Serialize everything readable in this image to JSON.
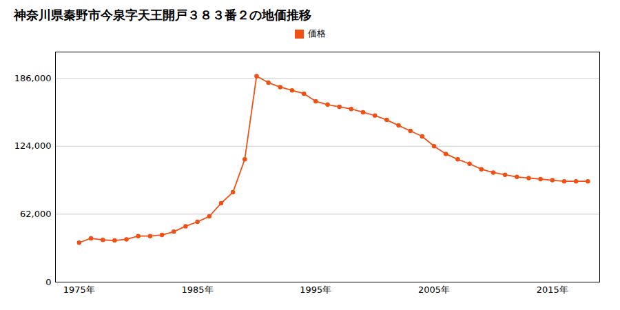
{
  "chart_data": {
    "type": "line",
    "title": "神奈川県秦野市今泉字天王開戸３８３番２の地価推移",
    "x": [
      1975,
      1976,
      1977,
      1978,
      1979,
      1980,
      1981,
      1982,
      1983,
      1984,
      1985,
      1986,
      1987,
      1988,
      1989,
      1990,
      1991,
      1992,
      1993,
      1994,
      1995,
      1996,
      1997,
      1998,
      1999,
      2000,
      2001,
      2002,
      2003,
      2004,
      2005,
      2006,
      2007,
      2008,
      2009,
      2010,
      2011,
      2012,
      2013,
      2014,
      2015,
      2016,
      2017,
      2018
    ],
    "series": [
      {
        "name": "価格",
        "color": "#f05014",
        "marker": "circle",
        "values": [
          36000,
          40000,
          38500,
          38000,
          39000,
          42000,
          42000,
          43000,
          46000,
          51000,
          55000,
          60000,
          72000,
          82000,
          112000,
          188000,
          182000,
          178000,
          175000,
          172000,
          165000,
          162000,
          160000,
          158000,
          155000,
          152000,
          148000,
          143000,
          138000,
          133000,
          124000,
          117000,
          112000,
          108000,
          103000,
          100000,
          98000,
          96000,
          95000,
          94000,
          93000,
          92000,
          92000,
          92000
        ]
      }
    ],
    "xlim": [
      1973,
      2019
    ],
    "xticks": [
      {
        "value": 1975,
        "label": "1975年"
      },
      {
        "value": 1985,
        "label": "1985年"
      },
      {
        "value": 1995,
        "label": "1995年"
      },
      {
        "value": 2005,
        "label": "2005年"
      },
      {
        "value": 2015,
        "label": "2015年"
      }
    ],
    "ylim": [
      0,
      210000
    ],
    "yticks": [
      0,
      {
        "value": 62000,
        "label": "62,000"
      },
      {
        "value": 124000,
        "label": "124,000"
      },
      {
        "value": 186000,
        "label": "186,000"
      }
    ],
    "grid": true,
    "legend": "top"
  }
}
